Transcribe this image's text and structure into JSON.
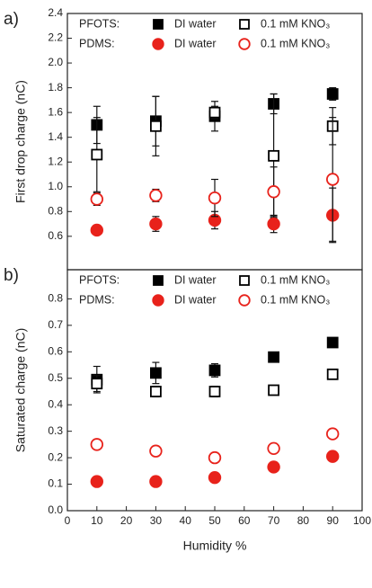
{
  "chart_data": [
    {
      "type": "scatter",
      "panel_label": "a)",
      "y_label": "First drop charge (nC)",
      "xlim": [
        0,
        100
      ],
      "ylim": [
        0.33,
        2.4
      ],
      "yticks": [
        0.6,
        0.8,
        {
          "value": 1,
          "label": "1.0"
        },
        1.2,
        1.4,
        1.6,
        1.8,
        {
          "value": 2,
          "label": "2.0"
        },
        2.2,
        2.4
      ],
      "x": [
        10,
        30,
        50,
        70,
        90
      ],
      "series": [
        {
          "group": "PFOTS:",
          "name": "DI water",
          "color": "#000000",
          "marker": "square",
          "filled": true,
          "values": [
            1.5,
            1.53,
            1.57,
            1.67,
            1.75
          ],
          "errors": [
            0.15,
            0.2,
            0.12,
            0.08,
            0.05
          ]
        },
        {
          "group": "PFOTS:",
          "name": "0.1 mM KNO₃",
          "color": "#000000",
          "marker": "square",
          "filled": false,
          "values": [
            1.26,
            1.49,
            1.6,
            1.25,
            1.49
          ],
          "errors": [
            0.3,
            0.24,
            0.05,
            0.5,
            0.15
          ]
        },
        {
          "group": "PDMS:",
          "name": "DI water",
          "color": "#e8221b",
          "marker": "circle",
          "filled": true,
          "values": [
            0.65,
            0.7,
            0.73,
            0.7,
            0.77
          ],
          "errors": [
            0.02,
            0.06,
            0.07,
            0.07,
            0.22
          ]
        },
        {
          "group": "PDMS:",
          "name": "0.1 mM KNO₃",
          "color": "#e8221b",
          "marker": "circle",
          "filled": false,
          "values": [
            0.9,
            0.93,
            0.91,
            0.96,
            1.06
          ],
          "errors": [
            0.05,
            0.05,
            0.15,
            0.2,
            0.5
          ]
        }
      ]
    },
    {
      "type": "scatter",
      "panel_label": "b)",
      "y_label": "Saturated charge (nC)",
      "x_label": "Humidity %",
      "xlim": [
        0,
        100
      ],
      "xticks": [
        0,
        10,
        20,
        30,
        40,
        50,
        60,
        70,
        80,
        90,
        100
      ],
      "ylim": [
        0,
        0.91
      ],
      "yticks": [
        {
          "value": 0,
          "label": "0.0"
        },
        0.1,
        0.2,
        0.3,
        0.4,
        0.5,
        0.6,
        0.7,
        0.8
      ],
      "x": [
        10,
        30,
        50,
        70,
        90
      ],
      "series": [
        {
          "group": "PFOTS:",
          "name": "DI water",
          "color": "#000000",
          "marker": "square",
          "filled": true,
          "values": [
            0.495,
            0.52,
            0.53,
            0.58,
            0.635
          ],
          "errors": [
            0.05,
            0.04,
            0.025,
            0.01,
            0.01
          ]
        },
        {
          "group": "PFOTS:",
          "name": "0.1 mM KNO₃",
          "color": "#000000",
          "marker": "square",
          "filled": false,
          "values": [
            0.48,
            0.45,
            0.45,
            0.455,
            0.515
          ],
          "errors": [
            0.03,
            0.02,
            0.02,
            0.01,
            0.01
          ]
        },
        {
          "group": "PDMS:",
          "name": "DI water",
          "color": "#e8221b",
          "marker": "circle",
          "filled": true,
          "values": [
            0.11,
            0.11,
            0.125,
            0.165,
            0.205
          ],
          "errors": [
            0.01,
            0.01,
            0.01,
            0.01,
            0.01
          ]
        },
        {
          "group": "PDMS:",
          "name": "0.1 mM KNO₃",
          "color": "#e8221b",
          "marker": "circle",
          "filled": false,
          "values": [
            0.25,
            0.225,
            0.2,
            0.235,
            0.29
          ],
          "errors": [
            0.01,
            0.01,
            0.01,
            0.01,
            0.01
          ]
        }
      ]
    }
  ]
}
